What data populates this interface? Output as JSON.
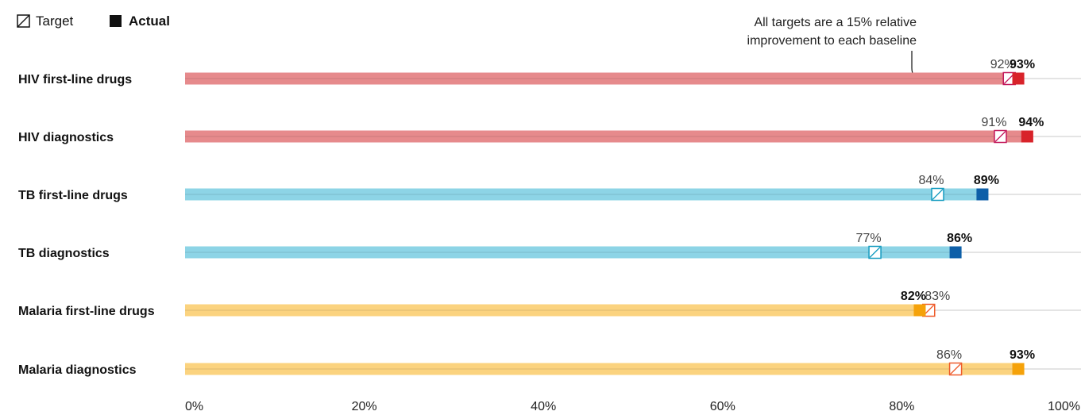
{
  "legend": {
    "target_label": "Target",
    "actual_label": "Actual"
  },
  "annotation": {
    "line1": "All targets are a 15% relative",
    "line2": "improvement to each baseline"
  },
  "chart_data": {
    "type": "bar",
    "categories": [
      "HIV first-line drugs",
      "HIV diagnostics",
      "TB first-line drugs",
      "TB diagnostics",
      "Malaria first-line drugs",
      "Malaria diagnostics"
    ],
    "series": [
      {
        "name": "Target",
        "values": [
          92,
          91,
          84,
          77,
          83,
          86
        ]
      },
      {
        "name": "Actual",
        "values": [
          93,
          94,
          89,
          86,
          82,
          93
        ]
      }
    ],
    "value_labels": {
      "Target": [
        "92%",
        "91%",
        "84%",
        "77%",
        "83%",
        "86%"
      ],
      "Actual": [
        "93%",
        "94%",
        "89%",
        "86%",
        "82%",
        "93%"
      ]
    },
    "xlim": [
      0,
      100
    ],
    "xticks": [
      0,
      20,
      40,
      60,
      80,
      100
    ],
    "xtick_labels": [
      "0%",
      "20%",
      "40%",
      "60%",
      "80%",
      "100%"
    ],
    "colors": {
      "HIV": {
        "bar": "#e68a8c",
        "marker": "#d8232a",
        "target": "#c2185b"
      },
      "TB": {
        "bar": "#8dd4e6",
        "marker": "#0e5fa8",
        "target": "#159cc0"
      },
      "Malaria": {
        "bar": "#fbd37f",
        "marker": "#f5a20a",
        "target": "#ee5a2a"
      }
    },
    "groups": [
      "HIV",
      "HIV",
      "TB",
      "TB",
      "Malaria",
      "Malaria"
    ],
    "legend_position": "top-left",
    "grid": false
  }
}
